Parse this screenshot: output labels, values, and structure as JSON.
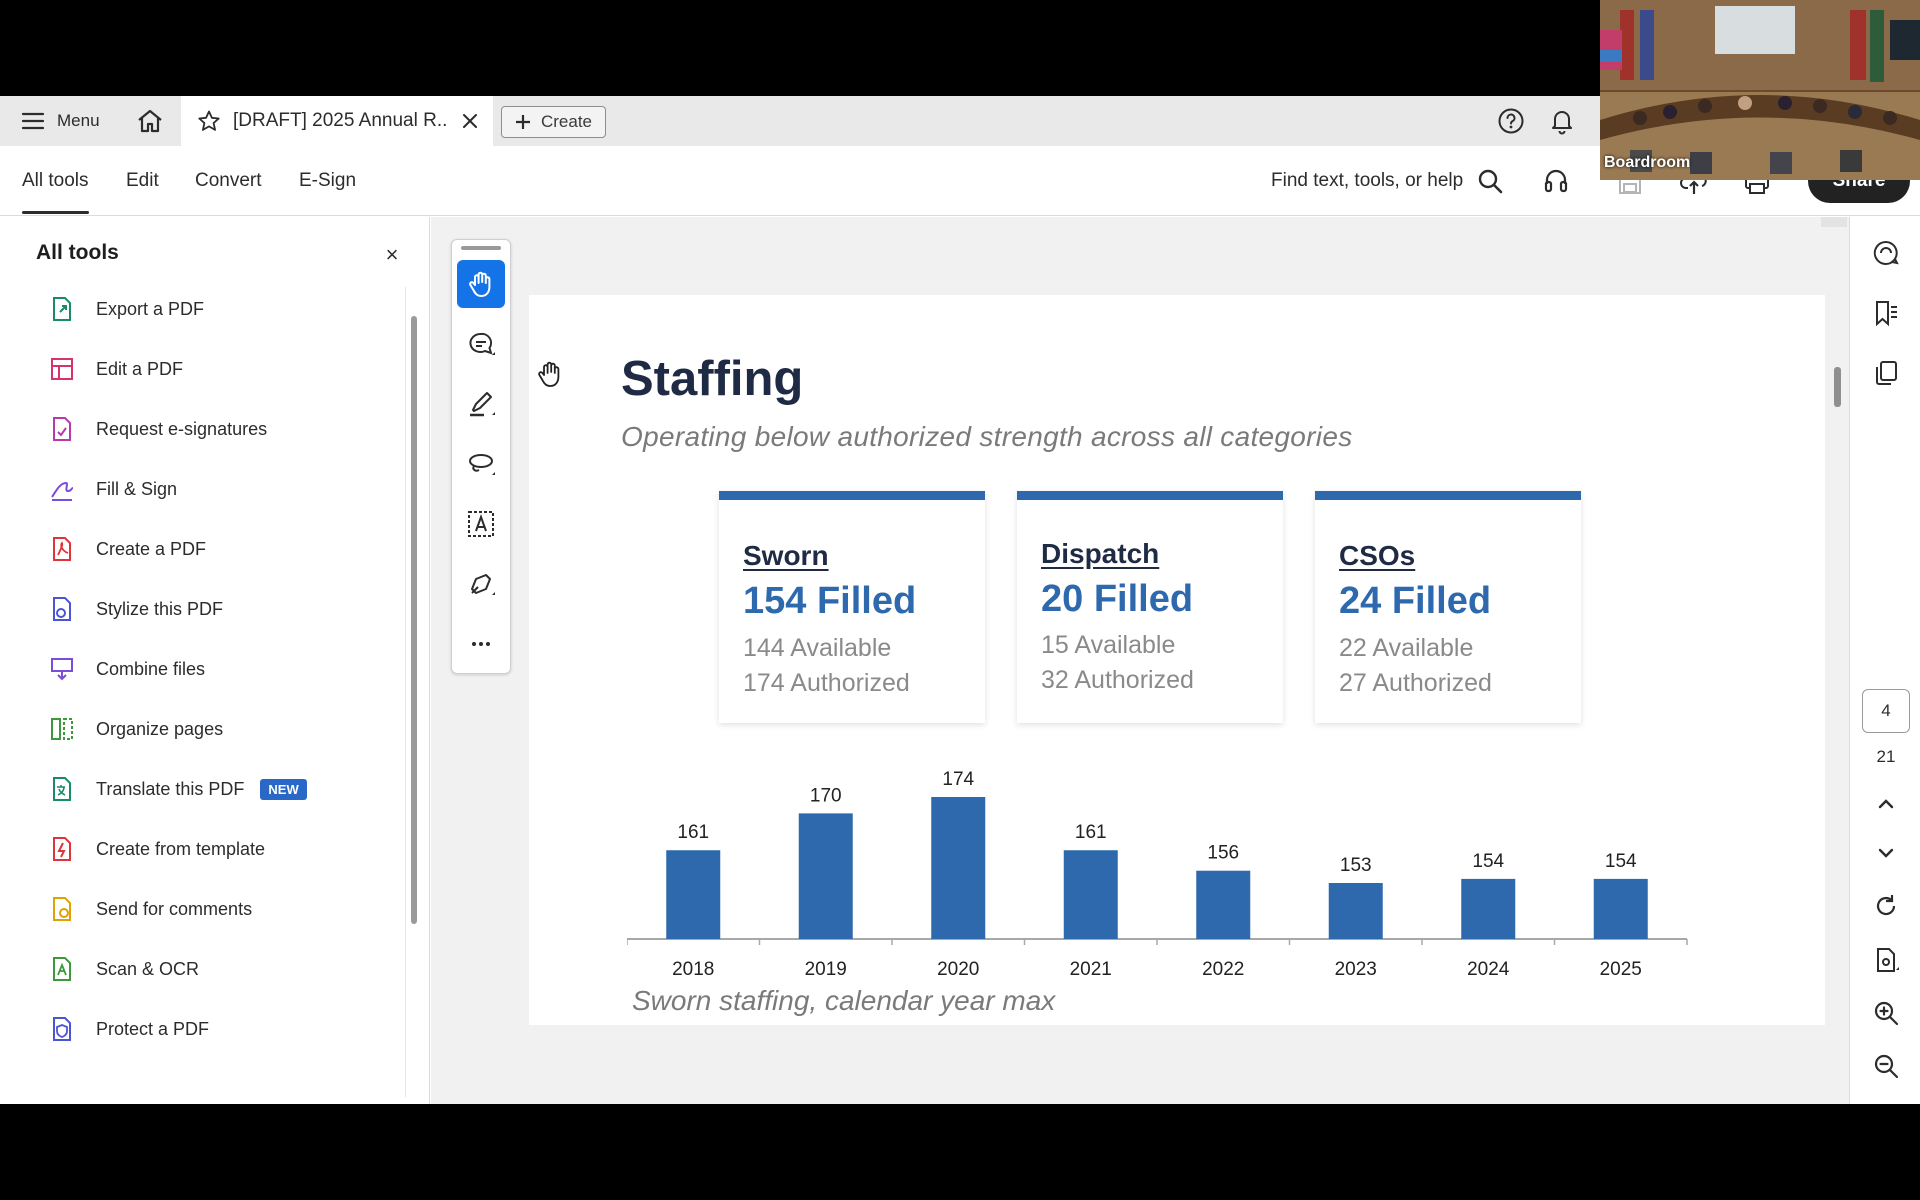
{
  "tabbar": {
    "menu_label": "Menu",
    "doc_tab_title": "[DRAFT] 2025 Annual R...",
    "create_label": "Create"
  },
  "nav": {
    "tabs": [
      "All tools",
      "Edit",
      "Convert",
      "E-Sign"
    ],
    "find_label": "Find text, tools, or help",
    "share_label": "Share"
  },
  "left_panel": {
    "title": "All tools",
    "close_glyph": "×",
    "items": [
      {
        "label": "Export a PDF",
        "icon": "export-pdf-icon",
        "color": "#1a8a6c"
      },
      {
        "label": "Edit a PDF",
        "icon": "edit-pdf-icon",
        "color": "#d6336c"
      },
      {
        "label": "Request e-signatures",
        "icon": "request-esign-icon",
        "color": "#b83aa8"
      },
      {
        "label": "Fill & Sign",
        "icon": "fill-sign-icon",
        "color": "#7b4ddb"
      },
      {
        "label": "Create a PDF",
        "icon": "create-pdf-icon",
        "color": "#e0343b"
      },
      {
        "label": "Stylize this PDF",
        "icon": "stylize-pdf-icon",
        "color": "#4a55d6"
      },
      {
        "label": "Combine files",
        "icon": "combine-files-icon",
        "color": "#7b4ddb"
      },
      {
        "label": "Organize pages",
        "icon": "organize-pages-icon",
        "color": "#3c9a3c"
      },
      {
        "label": "Translate this PDF",
        "icon": "translate-pdf-icon",
        "color": "#1a8a6c",
        "badge": "NEW"
      },
      {
        "label": "Create from template",
        "icon": "create-template-icon",
        "color": "#e0343b"
      },
      {
        "label": "Send for comments",
        "icon": "send-comments-icon",
        "color": "#e0a200"
      },
      {
        "label": "Scan & OCR",
        "icon": "scan-ocr-icon",
        "color": "#3c9a3c"
      },
      {
        "label": "Protect a PDF",
        "icon": "protect-pdf-icon",
        "color": "#4a55d6"
      }
    ]
  },
  "document": {
    "title": "Staffing",
    "subtitle": "Operating below authorized strength across all categories",
    "cards": [
      {
        "name": "Sworn",
        "filled": "154 Filled",
        "available": "144 Available",
        "authorized": "174 Authorized"
      },
      {
        "name": "Dispatch",
        "filled": "20 Filled",
        "available": "15 Available",
        "authorized": "32 Authorized"
      },
      {
        "name": "CSOs",
        "filled": "24 Filled",
        "available": "22 Available",
        "authorized": "27 Authorized"
      }
    ],
    "caption": "Sworn staffing, calendar year max",
    "accent_color": "#2e69ad"
  },
  "chart_data": {
    "type": "bar",
    "categories": [
      "2018",
      "2019",
      "2020",
      "2021",
      "2022",
      "2023",
      "2024",
      "2025"
    ],
    "values": [
      161,
      170,
      174,
      161,
      156,
      153,
      154,
      154
    ],
    "title": "",
    "xlabel": "",
    "ylabel": "",
    "grid": false,
    "data_labels": true,
    "color": "#2e69ad"
  },
  "right_rail": {
    "current_page": "4",
    "total_pages": "21"
  },
  "video": {
    "label": "Boardroom"
  }
}
